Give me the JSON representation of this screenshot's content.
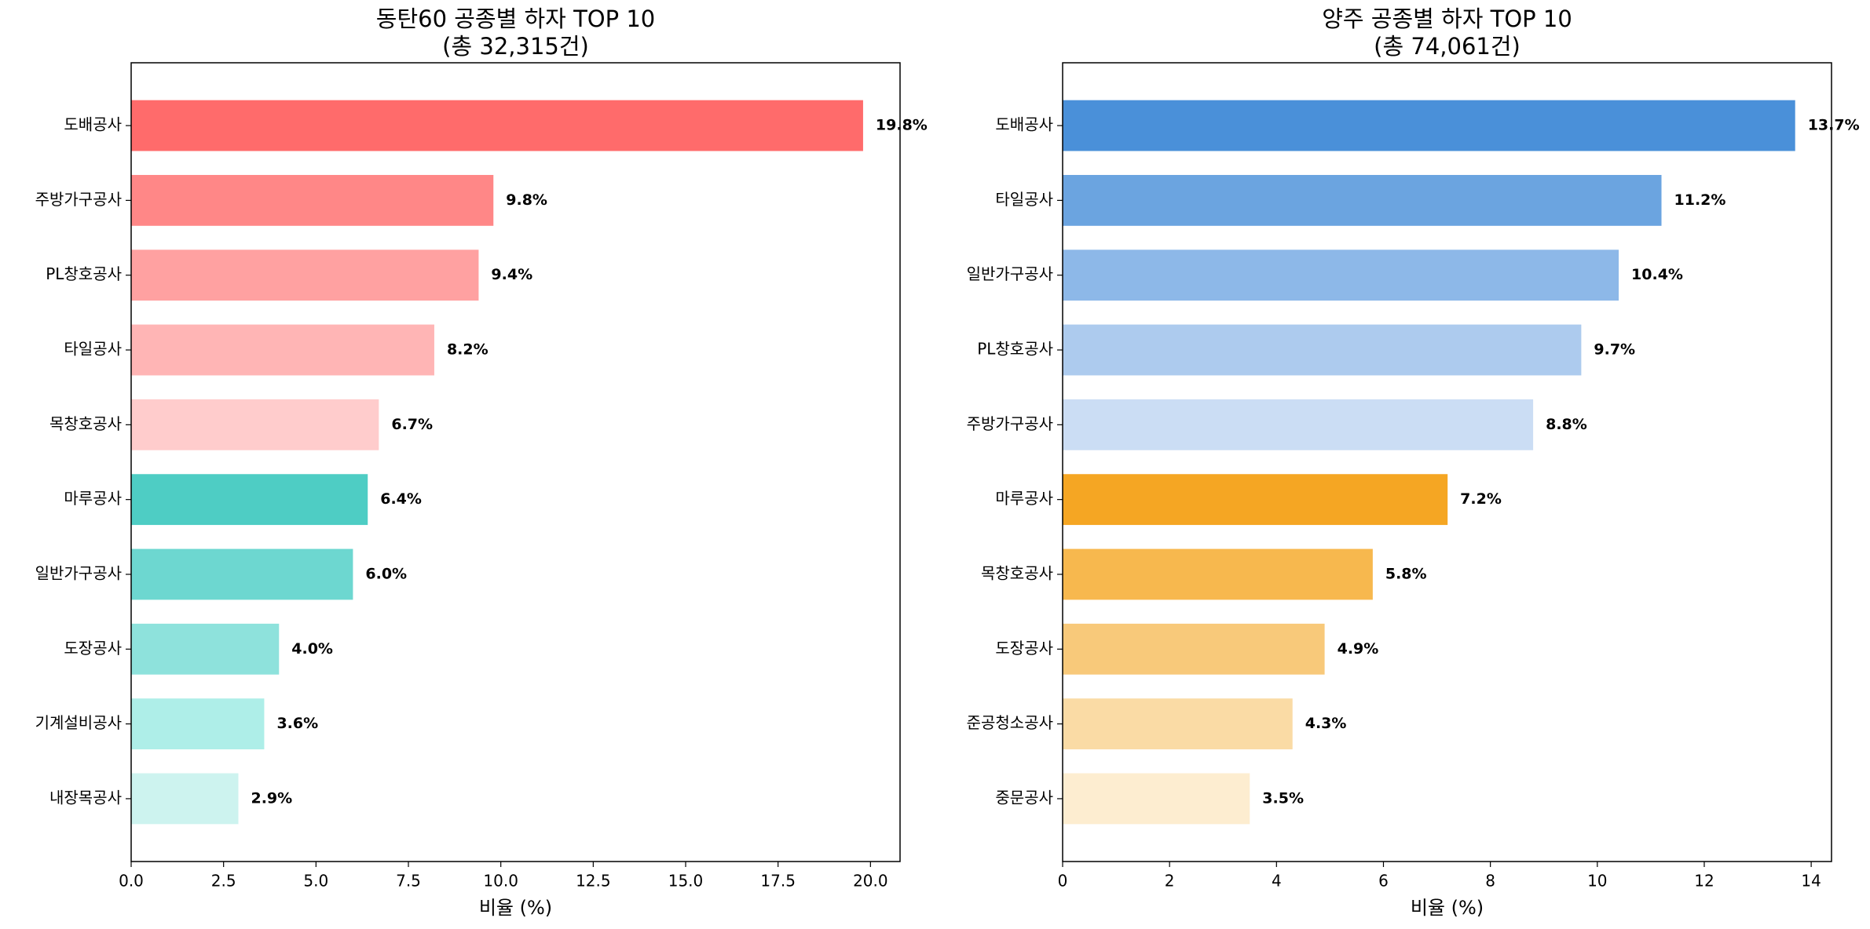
{
  "chart_data": [
    {
      "type": "barh",
      "title": "동탄60 공종별 하자 TOP 10",
      "subtitle": "(총 32,315건)",
      "x_label": "비율 (%)",
      "categories": [
        "도배공사",
        "주방가구공사",
        "PL창호공사",
        "타일공사",
        "목창호공사",
        "마루공사",
        "일반가구공사",
        "도장공사",
        "기계설비공사",
        "내장목공사"
      ],
      "values": [
        19.8,
        9.8,
        9.4,
        8.2,
        6.7,
        6.4,
        6.0,
        4.0,
        3.6,
        2.9
      ],
      "value_labels": [
        "19.8%",
        "9.8%",
        "9.4%",
        "8.2%",
        "6.7%",
        "6.4%",
        "6.0%",
        "4.0%",
        "3.6%",
        "2.9%"
      ],
      "colors": [
        "#ff6b6b",
        "#ff8787",
        "#ffa1a1",
        "#ffb5b5",
        "#ffcccc",
        "#4ecdc4",
        "#6dd7d0",
        "#8ee2dc",
        "#aeeee8",
        "#cdf3ef"
      ],
      "xlim": [
        0,
        20.8
      ],
      "xticks": [
        {
          "value": 0,
          "label": "0.0"
        },
        {
          "value": 2.5,
          "label": "2.5"
        },
        {
          "value": 5,
          "label": "5.0"
        },
        {
          "value": 7.5,
          "label": "7.5"
        },
        {
          "value": 10,
          "label": "10.0"
        },
        {
          "value": 12.5,
          "label": "12.5"
        },
        {
          "value": 15,
          "label": "15.0"
        },
        {
          "value": 17.5,
          "label": "17.5"
        },
        {
          "value": 20,
          "label": "20.0"
        }
      ],
      "grid": false
    },
    {
      "type": "barh",
      "title": "양주 공종별 하자 TOP 10",
      "subtitle": "(총 74,061건)",
      "x_label": "비율 (%)",
      "categories": [
        "도배공사",
        "타일공사",
        "일반가구공사",
        "PL창호공사",
        "주방가구공사",
        "마루공사",
        "목창호공사",
        "도장공사",
        "준공청소공사",
        "중문공사"
      ],
      "values": [
        13.7,
        11.2,
        10.4,
        9.7,
        8.8,
        7.2,
        5.8,
        4.9,
        4.3,
        3.5
      ],
      "value_labels": [
        "13.7%",
        "11.2%",
        "10.4%",
        "9.7%",
        "8.8%",
        "7.2%",
        "5.8%",
        "4.9%",
        "4.3%",
        "3.5%"
      ],
      "colors": [
        "#4a90d9",
        "#6ba4e0",
        "#8db8e8",
        "#adcbee",
        "#cbddf4",
        "#f5a623",
        "#f7b84e",
        "#f8c97a",
        "#fadba5",
        "#fdedd0"
      ],
      "xlim": [
        0,
        14.38
      ],
      "xticks": [
        0,
        2,
        4,
        6,
        8,
        10,
        12,
        14
      ],
      "grid": false
    }
  ]
}
